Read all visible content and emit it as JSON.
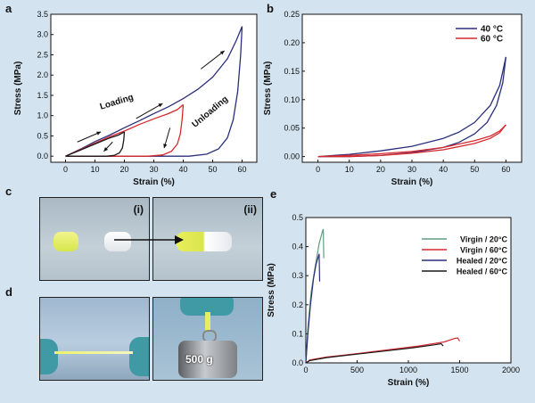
{
  "panel_labels": {
    "a": "a",
    "b": "b",
    "c": "c",
    "d": "d",
    "e": "e"
  },
  "photos": {
    "c_left_label": "(i)",
    "c_right_label": "(ii)",
    "d_weight_label": "500 g"
  },
  "colors": {
    "background": "#d3e3ef",
    "blue": "#2b2f7a",
    "red": "#d6282e",
    "teal": "#5e9e82",
    "black": "#1a1a1a"
  },
  "chart_data": [
    {
      "id": "a",
      "type": "line",
      "xlabel": "Strain (%)",
      "ylabel": "Stress (MPa)",
      "xlim": [
        -5,
        65
      ],
      "ylim": [
        -0.15,
        3.5
      ],
      "xticks": [
        0,
        10,
        20,
        30,
        40,
        50,
        60
      ],
      "yticks": [
        0.0,
        0.5,
        1.0,
        1.5,
        2.0,
        2.5,
        3.0,
        3.5
      ],
      "annotations": [
        "Loading",
        "Unloading"
      ],
      "series": [
        {
          "color": "#2b2f7a",
          "loading": [
            [
              0,
              0
            ],
            [
              5,
              0.17
            ],
            [
              10,
              0.36
            ],
            [
              15,
              0.52
            ],
            [
              20,
              0.7
            ],
            [
              25,
              0.87
            ],
            [
              30,
              1.05
            ],
            [
              35,
              1.22
            ],
            [
              40,
              1.42
            ],
            [
              45,
              1.65
            ],
            [
              50,
              1.95
            ],
            [
              55,
              2.4
            ],
            [
              58,
              2.85
            ],
            [
              60,
              3.2
            ]
          ],
          "unloading": [
            [
              60,
              3.2
            ],
            [
              59.5,
              2.5
            ],
            [
              58.5,
              1.6
            ],
            [
              57,
              0.9
            ],
            [
              55,
              0.45
            ],
            [
              52,
              0.18
            ],
            [
              48,
              0.05
            ],
            [
              42,
              0.0
            ],
            [
              30,
              0.0
            ],
            [
              20,
              0.0
            ],
            [
              10,
              0.0
            ],
            [
              0,
              0
            ]
          ]
        },
        {
          "color": "#d6282e",
          "loading": [
            [
              0,
              0
            ],
            [
              5,
              0.16
            ],
            [
              10,
              0.32
            ],
            [
              15,
              0.48
            ],
            [
              20,
              0.62
            ],
            [
              25,
              0.78
            ],
            [
              30,
              0.92
            ],
            [
              35,
              1.05
            ],
            [
              38,
              1.15
            ],
            [
              40,
              1.27
            ]
          ],
          "unloading": [
            [
              40,
              1.27
            ],
            [
              39.6,
              0.9
            ],
            [
              39,
              0.55
            ],
            [
              38,
              0.3
            ],
            [
              36,
              0.12
            ],
            [
              33,
              0.03
            ],
            [
              28,
              0.0
            ],
            [
              20,
              0.0
            ],
            [
              10,
              0.0
            ],
            [
              0,
              0
            ]
          ]
        },
        {
          "color": "#1a1a1a",
          "loading": [
            [
              0,
              0
            ],
            [
              5,
              0.15
            ],
            [
              10,
              0.3
            ],
            [
              15,
              0.45
            ],
            [
              18,
              0.52
            ],
            [
              20,
              0.6
            ]
          ],
          "unloading": [
            [
              20,
              0.6
            ],
            [
              19.8,
              0.4
            ],
            [
              19.3,
              0.2
            ],
            [
              18.3,
              0.08
            ],
            [
              16.5,
              0.02
            ],
            [
              14,
              0.0
            ],
            [
              10,
              0.0
            ],
            [
              0,
              0
            ]
          ]
        }
      ]
    },
    {
      "id": "b",
      "type": "line",
      "xlabel": "Strain (%)",
      "ylabel": "Stress (MPa)",
      "xlim": [
        -5,
        65
      ],
      "ylim": [
        -0.01,
        0.25
      ],
      "xticks": [
        0,
        10,
        20,
        30,
        40,
        50,
        60
      ],
      "yticks": [
        0.0,
        0.05,
        0.1,
        0.15,
        0.2,
        0.25
      ],
      "legend_position": "top-right",
      "series": [
        {
          "name": "40 °C",
          "color": "#2b2f7a",
          "loading": [
            [
              0,
              0
            ],
            [
              10,
              0.004
            ],
            [
              20,
              0.01
            ],
            [
              30,
              0.018
            ],
            [
              40,
              0.032
            ],
            [
              45,
              0.043
            ],
            [
              50,
              0.06
            ],
            [
              55,
              0.09
            ],
            [
              58,
              0.125
            ],
            [
              60,
              0.175
            ]
          ],
          "unloading": [
            [
              60,
              0.175
            ],
            [
              59,
              0.13
            ],
            [
              57,
              0.09
            ],
            [
              54,
              0.06
            ],
            [
              50,
              0.04
            ],
            [
              45,
              0.025
            ],
            [
              40,
              0.016
            ],
            [
              30,
              0.007
            ],
            [
              20,
              0.002
            ],
            [
              10,
              0.0
            ],
            [
              0,
              0
            ]
          ]
        },
        {
          "name": "60 °C",
          "color": "#d6282e",
          "loading": [
            [
              0,
              0
            ],
            [
              10,
              0.002
            ],
            [
              20,
              0.005
            ],
            [
              30,
              0.009
            ],
            [
              40,
              0.016
            ],
            [
              50,
              0.028
            ],
            [
              55,
              0.036
            ],
            [
              58,
              0.045
            ],
            [
              60,
              0.056
            ]
          ],
          "unloading": [
            [
              60,
              0.056
            ],
            [
              58,
              0.042
            ],
            [
              55,
              0.032
            ],
            [
              50,
              0.023
            ],
            [
              40,
              0.012
            ],
            [
              30,
              0.006
            ],
            [
              20,
              0.002
            ],
            [
              10,
              0.0
            ],
            [
              0,
              0
            ]
          ]
        }
      ]
    },
    {
      "id": "e",
      "type": "line",
      "xlabel": "Strain (%)",
      "ylabel": "Stress (MPa)",
      "xlim": [
        0,
        2000
      ],
      "ylim": [
        0,
        0.5
      ],
      "xticks": [
        0,
        500,
        1000,
        1500,
        2000
      ],
      "yticks": [
        0.0,
        0.1,
        0.2,
        0.3,
        0.4,
        0.5
      ],
      "legend_position": "top-right",
      "series": [
        {
          "name": "Virgin / 20°C",
          "color": "#5e9e82",
          "points": [
            [
              0,
              0
            ],
            [
              20,
              0.12
            ],
            [
              50,
              0.24
            ],
            [
              90,
              0.33
            ],
            [
              130,
              0.41
            ],
            [
              160,
              0.45
            ],
            [
              170,
              0.46
            ],
            [
              175,
              0.36
            ]
          ]
        },
        {
          "name": "Virgin / 60°C",
          "color": "#d6282e",
          "points": [
            [
              0,
              0
            ],
            [
              40,
              0.01
            ],
            [
              200,
              0.02
            ],
            [
              500,
              0.032
            ],
            [
              800,
              0.045
            ],
            [
              1100,
              0.058
            ],
            [
              1350,
              0.072
            ],
            [
              1450,
              0.084
            ],
            [
              1480,
              0.086
            ],
            [
              1500,
              0.075
            ]
          ]
        },
        {
          "name": "Healed / 20°C",
          "color": "#2b2f7a",
          "points": [
            [
              0,
              0
            ],
            [
              20,
              0.1
            ],
            [
              45,
              0.2
            ],
            [
              75,
              0.29
            ],
            [
              100,
              0.34
            ],
            [
              125,
              0.37
            ],
            [
              130,
              0.375
            ],
            [
              135,
              0.28
            ]
          ]
        },
        {
          "name": "Healed / 60°C",
          "color": "#1a1a1a",
          "points": [
            [
              0,
              0
            ],
            [
              40,
              0.008
            ],
            [
              200,
              0.018
            ],
            [
              500,
              0.03
            ],
            [
              800,
              0.042
            ],
            [
              1050,
              0.052
            ],
            [
              1250,
              0.062
            ],
            [
              1320,
              0.066
            ],
            [
              1340,
              0.058
            ]
          ]
        }
      ]
    }
  ]
}
